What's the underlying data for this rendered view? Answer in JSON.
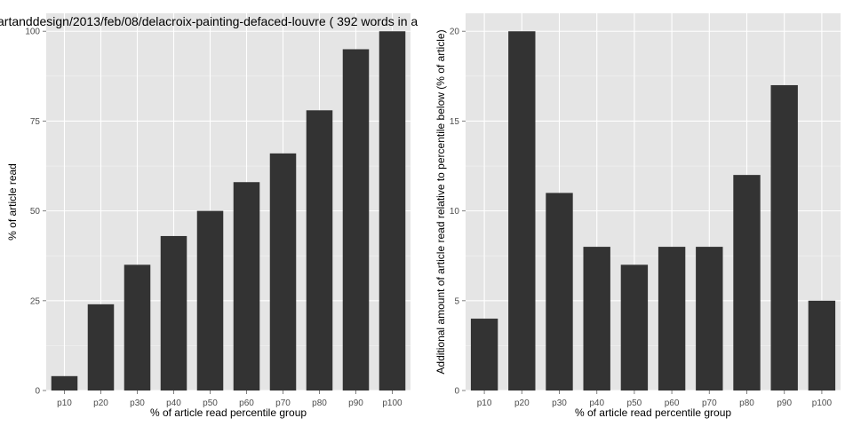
{
  "figure": {
    "title": "artanddesign/2013/feb/08/delacroix-painting-defaced-louvre ( 392 words in a"
  },
  "style": {
    "panel_bg": "#e5e5e5",
    "grid_major": "#ffffff",
    "grid_minor": "#f2f2f2",
    "bar_fill": "#333333",
    "tick_text": "#4d4d4d"
  },
  "chart_data": [
    {
      "type": "bar",
      "title": "artanddesign/2013/feb/08/delacroix-painting-defaced-louvre ( 392 words in a",
      "xlabel": "% of article read percentile group",
      "ylabel": "% of article read",
      "categories": [
        "p10",
        "p20",
        "p30",
        "p40",
        "p50",
        "p60",
        "p70",
        "p80",
        "p90",
        "p100"
      ],
      "values": [
        4,
        24,
        35,
        43,
        50,
        58,
        66,
        78,
        95,
        100
      ],
      "ylim": [
        0,
        105
      ],
      "yticks": [
        0,
        25,
        50,
        75,
        100
      ],
      "grid": true,
      "legend": null
    },
    {
      "type": "bar",
      "title": "",
      "xlabel": "% of article read percentile group",
      "ylabel": "Additional amount of article read relative to percentile below (% of article)",
      "categories": [
        "p10",
        "p20",
        "p30",
        "p40",
        "p50",
        "p60",
        "p70",
        "p80",
        "p90",
        "p100"
      ],
      "values": [
        4,
        20,
        11,
        8,
        7,
        8,
        8,
        12,
        17,
        5
      ],
      "ylim": [
        0,
        21
      ],
      "yticks": [
        0,
        5,
        10,
        15,
        20
      ],
      "grid": true,
      "legend": null
    }
  ]
}
